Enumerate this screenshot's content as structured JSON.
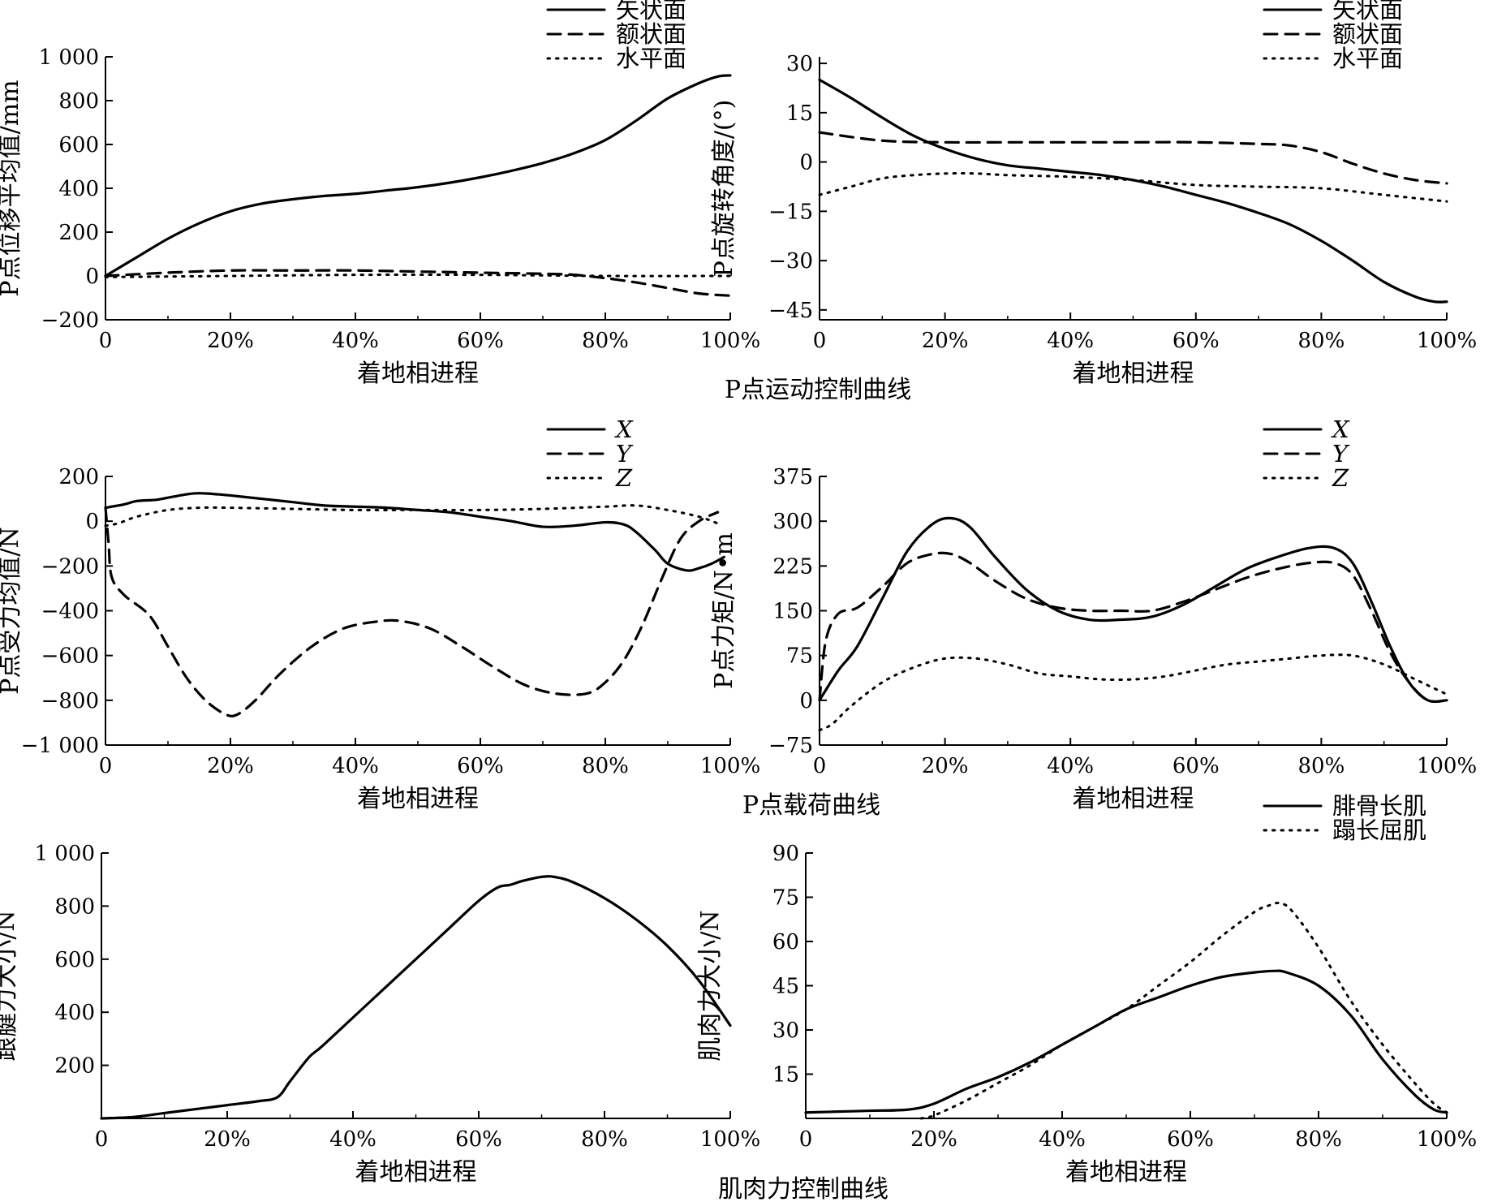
{
  "captions": {
    "row1": "P点运动控制曲线",
    "row2": "P点载荷曲线",
    "row3": "肌肉力控制曲线"
  },
  "chart_data": [
    {
      "type": "line",
      "ylabel": "P点位移平均值/mm",
      "xlabel": "着地相进程",
      "x_tick_labels": [
        "0",
        "20%",
        "40%",
        "60%",
        "80%",
        "100%"
      ],
      "y_tick_labels": [
        "−200",
        "0",
        "200",
        "400",
        "600",
        "800",
        "1 000"
      ],
      "ylim": [
        -200,
        1000
      ],
      "xlim": [
        0,
        100
      ],
      "legend_position": "top-right",
      "series": [
        {
          "name": "矢状面",
          "style": "solid",
          "x": [
            0,
            5,
            10,
            15,
            20,
            25,
            30,
            35,
            40,
            45,
            50,
            55,
            60,
            65,
            70,
            75,
            80,
            85,
            90,
            95,
            98,
            100
          ],
          "y": [
            0,
            85,
            170,
            240,
            295,
            330,
            350,
            365,
            375,
            390,
            405,
            425,
            450,
            480,
            515,
            560,
            620,
            710,
            810,
            880,
            910,
            915
          ]
        },
        {
          "name": "额状面",
          "style": "dashed",
          "x": [
            0,
            10,
            20,
            30,
            40,
            50,
            60,
            70,
            75,
            80,
            85,
            90,
            95,
            100
          ],
          "y": [
            0,
            15,
            25,
            25,
            25,
            20,
            15,
            10,
            5,
            -10,
            -30,
            -55,
            -80,
            -90
          ]
        },
        {
          "name": "水平面",
          "style": "dotted",
          "x": [
            0,
            20,
            40,
            60,
            80,
            100
          ],
          "y": [
            -5,
            0,
            5,
            5,
            0,
            0
          ]
        }
      ]
    },
    {
      "type": "line",
      "ylabel": "P点旋转角度/(°)",
      "xlabel": "着地相进程",
      "x_tick_labels": [
        "0",
        "20%",
        "40%",
        "60%",
        "80%",
        "100%"
      ],
      "y_tick_labels": [
        "−45",
        "−30",
        "−15",
        "0",
        "15",
        "30"
      ],
      "ylim": [
        -48,
        32
      ],
      "xlim": [
        0,
        100
      ],
      "legend_position": "top-right",
      "series": [
        {
          "name": "矢状面",
          "style": "solid",
          "x": [
            0,
            5,
            10,
            15,
            20,
            25,
            30,
            35,
            40,
            45,
            50,
            55,
            60,
            65,
            70,
            75,
            80,
            85,
            90,
            95,
            98,
            100
          ],
          "y": [
            25,
            19.5,
            13.5,
            8,
            4,
            1,
            -1,
            -2,
            -3,
            -4,
            -5.5,
            -7.5,
            -10,
            -12.5,
            -15.5,
            -19,
            -24,
            -30,
            -36.5,
            -41,
            -42.5,
            -42.5
          ]
        },
        {
          "name": "额状面",
          "style": "dashed",
          "x": [
            0,
            10,
            20,
            30,
            40,
            50,
            60,
            70,
            75,
            80,
            85,
            90,
            95,
            100
          ],
          "y": [
            9,
            6.5,
            6,
            6,
            6,
            6,
            6,
            5.5,
            5,
            3,
            -0.5,
            -3.5,
            -5.5,
            -6.5
          ]
        },
        {
          "name": "水平面",
          "style": "dotted",
          "x": [
            0,
            5,
            10,
            15,
            20,
            25,
            30,
            40,
            50,
            60,
            70,
            80,
            90,
            100
          ],
          "y": [
            -10,
            -7.5,
            -5,
            -4,
            -3.5,
            -3.5,
            -4,
            -4.5,
            -5.5,
            -7,
            -7.5,
            -8,
            -10,
            -12
          ]
        }
      ]
    },
    {
      "type": "line",
      "ylabel": "P点受力均值/N",
      "xlabel": "着地相进程",
      "x_tick_labels": [
        "0",
        "20%",
        "40%",
        "60%",
        "80%",
        "100%"
      ],
      "y_tick_labels": [
        "−1 000",
        "−800",
        "−600",
        "−400",
        "−200",
        "0",
        "200"
      ],
      "ylim": [
        -1000,
        200
      ],
      "xlim": [
        0,
        100
      ],
      "legend_position": "top-right",
      "series": [
        {
          "name": "X",
          "style": "solid",
          "x": [
            0,
            3,
            5,
            8,
            10,
            13,
            15,
            18,
            20,
            25,
            30,
            35,
            40,
            45,
            50,
            55,
            60,
            65,
            70,
            75,
            80,
            83,
            85,
            88,
            90,
            93,
            95,
            97,
            99
          ],
          "y": [
            60,
            75,
            90,
            95,
            105,
            120,
            125,
            120,
            115,
            100,
            85,
            70,
            65,
            60,
            50,
            40,
            20,
            0,
            -25,
            -20,
            -5,
            -15,
            -50,
            -130,
            -190,
            -220,
            -210,
            -190,
            -160
          ]
        },
        {
          "name": "Y",
          "style": "dashed",
          "x": [
            0,
            0.5,
            1,
            3,
            7,
            10,
            13,
            16,
            19,
            21,
            24,
            28,
            33,
            38,
            43,
            47,
            52,
            57,
            62,
            67,
            72,
            77,
            80,
            83,
            86,
            89,
            92,
            95,
            98
          ],
          "y": [
            60,
            -100,
            -250,
            -330,
            -420,
            -560,
            -700,
            -800,
            -860,
            -865,
            -800,
            -680,
            -560,
            -480,
            -450,
            -445,
            -480,
            -560,
            -650,
            -730,
            -770,
            -770,
            -720,
            -620,
            -460,
            -260,
            -80,
            0,
            40
          ]
        },
        {
          "name": "Z",
          "style": "dotted",
          "x": [
            0,
            2,
            5,
            10,
            15,
            20,
            30,
            40,
            50,
            60,
            70,
            80,
            85,
            90,
            95,
            98
          ],
          "y": [
            -20,
            -10,
            20,
            50,
            60,
            60,
            55,
            50,
            50,
            50,
            55,
            65,
            70,
            50,
            20,
            -10
          ]
        }
      ]
    },
    {
      "type": "line",
      "ylabel": "P点力矩/N•m",
      "xlabel": "着地相进程",
      "x_tick_labels": [
        "0",
        "20%",
        "40%",
        "60%",
        "80%",
        "100%"
      ],
      "y_tick_labels": [
        "−75",
        "0",
        "75",
        "150",
        "225",
        "300",
        "375"
      ],
      "ylim": [
        -75,
        375
      ],
      "xlim": [
        0,
        100
      ],
      "legend_position": "top-right",
      "series": [
        {
          "name": "X",
          "style": "solid",
          "x": [
            0,
            3,
            6,
            10,
            14,
            18,
            21,
            24,
            28,
            33,
            38,
            43,
            48,
            53,
            58,
            63,
            68,
            73,
            78,
            82,
            85,
            88,
            91,
            94,
            97,
            100
          ],
          "y": [
            0,
            50,
            90,
            170,
            250,
            295,
            305,
            290,
            240,
            185,
            150,
            135,
            135,
            140,
            160,
            190,
            220,
            240,
            255,
            255,
            230,
            165,
            90,
            30,
            0,
            0
          ]
        },
        {
          "name": "Y",
          "style": "dashed",
          "x": [
            0,
            1,
            3,
            6,
            10,
            14,
            18,
            21,
            24,
            28,
            33,
            38,
            43,
            48,
            53,
            58,
            63,
            68,
            73,
            78,
            82,
            85,
            88,
            91,
            94,
            97,
            100
          ],
          "y": [
            0,
            100,
            145,
            155,
            190,
            230,
            245,
            245,
            230,
            200,
            170,
            155,
            150,
            150,
            150,
            165,
            185,
            205,
            220,
            230,
            230,
            210,
            150,
            80,
            30,
            0,
            0
          ]
        },
        {
          "name": "Z",
          "style": "dotted",
          "x": [
            0,
            2,
            5,
            10,
            15,
            20,
            25,
            30,
            35,
            40,
            45,
            50,
            55,
            60,
            65,
            70,
            75,
            80,
            85,
            90,
            95,
            100
          ],
          "y": [
            -50,
            -40,
            -10,
            30,
            55,
            70,
            70,
            60,
            45,
            40,
            35,
            35,
            40,
            50,
            60,
            65,
            70,
            75,
            75,
            60,
            35,
            10
          ]
        }
      ]
    },
    {
      "type": "line",
      "ylabel": "跟腱力大小/N",
      "xlabel": "着地相进程",
      "x_tick_labels": [
        "0",
        "20%",
        "40%",
        "60%",
        "80%",
        "100%"
      ],
      "y_tick_labels": [
        "200",
        "400",
        "600",
        "800",
        "1 000"
      ],
      "ylim": [
        0,
        1000
      ],
      "xlim": [
        0,
        100
      ],
      "legend_position": "none",
      "series": [
        {
          "name": "",
          "style": "solid",
          "x": [
            0,
            5,
            10,
            15,
            20,
            25,
            28,
            30,
            33,
            35,
            40,
            45,
            50,
            55,
            60,
            63,
            65,
            67,
            70,
            72,
            75,
            80,
            85,
            90,
            95,
            100
          ],
          "y": [
            0,
            5,
            20,
            35,
            50,
            65,
            80,
            140,
            230,
            270,
            380,
            490,
            600,
            710,
            820,
            870,
            880,
            895,
            910,
            910,
            890,
            830,
            750,
            650,
            520,
            350
          ]
        }
      ]
    },
    {
      "type": "line",
      "ylabel": "肌肉力大小/N",
      "xlabel": "着地相进程",
      "x_tick_labels": [
        "0",
        "20%",
        "40%",
        "60%",
        "80%",
        "100%"
      ],
      "y_tick_labels": [
        "15",
        "30",
        "45",
        "60",
        "75",
        "90"
      ],
      "ylim": [
        0,
        90
      ],
      "xlim": [
        0,
        100
      ],
      "legend_position": "top-right",
      "series": [
        {
          "name": "腓骨长肌",
          "style": "solid",
          "x": [
            0,
            5,
            10,
            16,
            20,
            25,
            30,
            35,
            40,
            45,
            50,
            55,
            60,
            65,
            70,
            73,
            75,
            80,
            85,
            90,
            95,
            98,
            100
          ],
          "y": [
            2,
            2.3,
            2.6,
            3,
            5,
            10,
            14,
            19,
            25,
            31,
            37,
            41,
            45,
            48,
            49.5,
            50,
            49.5,
            45,
            35,
            20,
            8,
            3,
            2
          ]
        },
        {
          "name": "蹋长屈肌",
          "style": "dotted",
          "x": [
            18,
            20,
            25,
            30,
            35,
            40,
            45,
            50,
            55,
            60,
            65,
            70,
            72,
            74,
            76,
            80,
            85,
            90,
            95,
            98,
            100
          ],
          "y": [
            0,
            1,
            6,
            12,
            18,
            25,
            31,
            37,
            45,
            53,
            62,
            70,
            72,
            73,
            70,
            58,
            40,
            25,
            12,
            5,
            2
          ]
        }
      ]
    }
  ]
}
